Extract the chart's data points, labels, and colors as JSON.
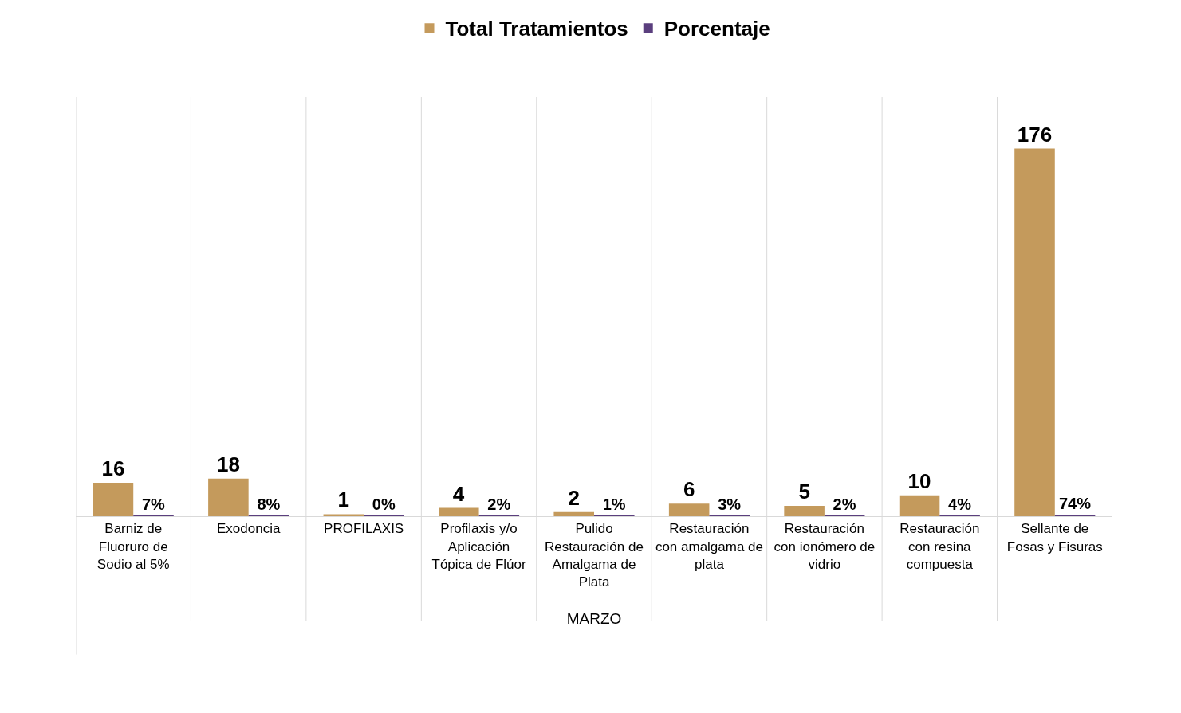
{
  "chart_data": {
    "type": "bar",
    "xlabel": "MARZO",
    "legend": "top",
    "grid": "x",
    "data_labels": true,
    "categories": [
      "Barniz de Fluoruro de Sodio al 5%",
      "Exodoncia",
      "PROFILAXIS",
      "Profilaxis y/o Aplicación Tópica de Flúor",
      "Pulido Restauración de Amalgama de Plata",
      "Restauración con amalgama de plata",
      "Restauración con ionómero de vidrio",
      "Restauración con resina compuesta",
      "Sellante de Fosas y Fisuras"
    ],
    "series": [
      {
        "name": "Total Tratamientos",
        "color": "#c49a5c",
        "values": [
          16,
          18,
          1,
          4,
          2,
          6,
          5,
          10,
          176
        ]
      },
      {
        "name": "Porcentaje",
        "color": "#5b3f7e",
        "values": [
          0.07,
          0.08,
          0.004,
          0.02,
          0.01,
          0.03,
          0.02,
          0.04,
          0.74
        ],
        "value_labels": [
          "7%",
          "8%",
          "0%",
          "2%",
          "1%",
          "3%",
          "2%",
          "4%",
          "74%"
        ]
      }
    ]
  }
}
